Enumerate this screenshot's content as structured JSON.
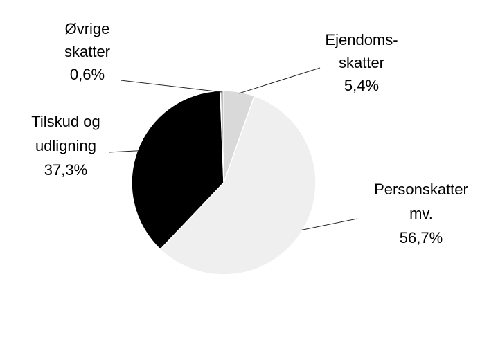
{
  "chart_data": {
    "type": "pie",
    "title": "",
    "slices": [
      {
        "name": "Ejendoms- skatter",
        "label_lines": [
          "Ejendoms-",
          "skatter",
          "5,4%"
        ],
        "value": 5.4,
        "color": "#d9d9d9"
      },
      {
        "name": "Personskatter mv.",
        "label_lines": [
          "Personskatter",
          "mv.",
          "56,7%"
        ],
        "value": 56.7,
        "color": "#efefef"
      },
      {
        "name": "Tilskud og udligning",
        "label_lines": [
          "Tilskud og",
          "udligning",
          "37,3%"
        ],
        "value": 37.3,
        "color": "#000000"
      },
      {
        "name": "Øvrige skatter",
        "label_lines": [
          "Øvrige",
          "skatter",
          "0,6%"
        ],
        "value": 0.6,
        "color": "#bfbfbf"
      }
    ],
    "start_angle_deg": 0,
    "direction": "clockwise",
    "legend": "none",
    "label_style": "outside with leader lines"
  }
}
